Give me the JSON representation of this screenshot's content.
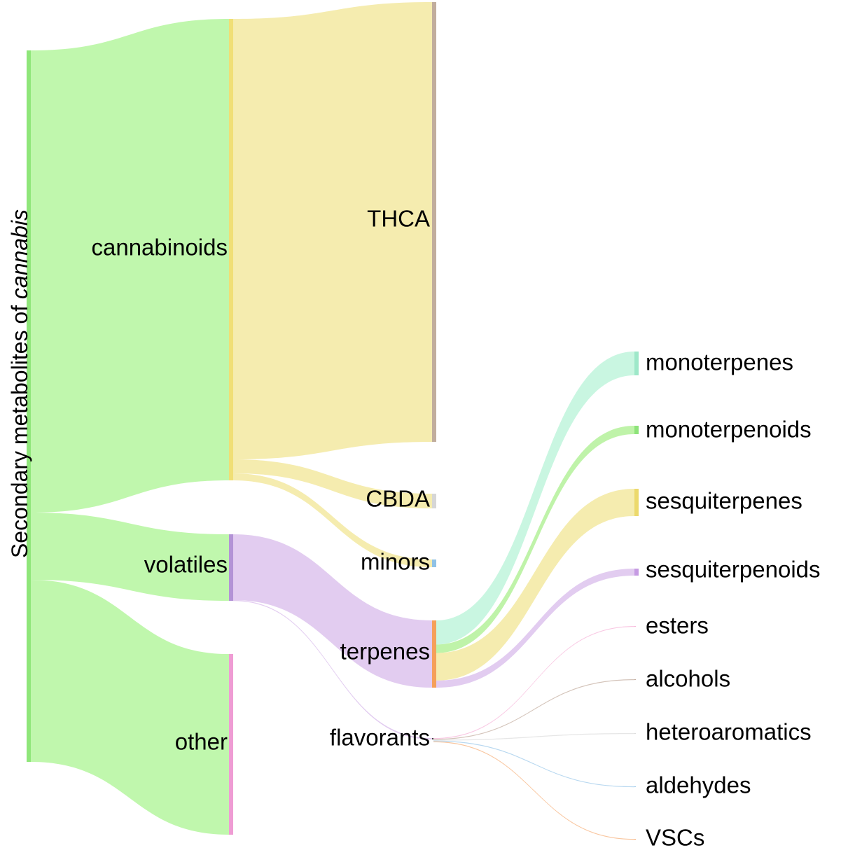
{
  "diagram": {
    "type": "sankey",
    "title_prefix": "Secondary metabolites of ",
    "title_italic": "cannabis",
    "nodes": [
      {
        "id": "root",
        "label": "",
        "color": "#8fe67a"
      },
      {
        "id": "cannabinoids",
        "label": "cannabinoids",
        "color": "#f0df76"
      },
      {
        "id": "volatiles",
        "label": "volatiles",
        "color": "#b393d6"
      },
      {
        "id": "other",
        "label": "other",
        "color": "#ef9cd4"
      },
      {
        "id": "THCA",
        "label": "THCA",
        "color": "#c1ad9d"
      },
      {
        "id": "CBDA",
        "label": "CBDA",
        "color": "#d6d6d6"
      },
      {
        "id": "minors",
        "label": "minors",
        "color": "#8fc1e6"
      },
      {
        "id": "terpenes",
        "label": "terpenes",
        "color": "#f5a05a"
      },
      {
        "id": "flavorants",
        "label": "flavorants",
        "color": "#444444"
      },
      {
        "id": "monoterpenes",
        "label": "monoterpenes",
        "color": "#9ee8c9"
      },
      {
        "id": "monoterpenoids",
        "label": "monoterpenoids",
        "color": "#8ee37a"
      },
      {
        "id": "sesquiterpenes",
        "label": "sesquiterpenes",
        "color": "#ecd96c"
      },
      {
        "id": "sesquiterpenoids",
        "label": "sesquiterpenoids",
        "color": "#c69be3"
      },
      {
        "id": "esters",
        "label": "esters",
        "color": "#f6b3d8"
      },
      {
        "id": "alcohols",
        "label": "alcohols",
        "color": "#c3ad9f"
      },
      {
        "id": "heteroaromatics",
        "label": "heteroaromatics",
        "color": "#dcdcdc"
      },
      {
        "id": "aldehydes",
        "label": "aldehydes",
        "color": "#9cc9ea"
      },
      {
        "id": "VSCs",
        "label": "VSCs",
        "color": "#f6b07a"
      }
    ],
    "links": [
      {
        "source": "root",
        "target": "cannabinoids",
        "value": 66,
        "color": "#a8f48e"
      },
      {
        "source": "root",
        "target": "volatiles",
        "value": 9.6,
        "color": "#a8f48e"
      },
      {
        "source": "root",
        "target": "other",
        "value": 26,
        "color": "#a8f48e"
      },
      {
        "source": "cannabinoids",
        "target": "THCA",
        "value": 63,
        "color": "#f1e590"
      },
      {
        "source": "cannabinoids",
        "target": "CBDA",
        "value": 2,
        "color": "#f1e590"
      },
      {
        "source": "cannabinoids",
        "target": "minors",
        "value": 1,
        "color": "#f1e590"
      },
      {
        "source": "volatiles",
        "target": "terpenes",
        "value": 9.5,
        "color": "#d7b8ea"
      },
      {
        "source": "volatiles",
        "target": "flavorants",
        "value": 0.1,
        "color": "#d7b8ea"
      },
      {
        "source": "terpenes",
        "target": "monoterpenes",
        "value": 3.4,
        "color": "#b4f2d6"
      },
      {
        "source": "terpenes",
        "target": "monoterpenoids",
        "value": 1.2,
        "color": "#a6ee88"
      },
      {
        "source": "terpenes",
        "target": "sesquiterpenes",
        "value": 3.9,
        "color": "#f1e590"
      },
      {
        "source": "terpenes",
        "target": "sesquiterpenoids",
        "value": 1.0,
        "color": "#d7b8ea"
      },
      {
        "source": "flavorants",
        "target": "esters",
        "value": 0.02,
        "color": "#f6b3d8"
      },
      {
        "source": "flavorants",
        "target": "alcohols",
        "value": 0.02,
        "color": "#c3ad9f"
      },
      {
        "source": "flavorants",
        "target": "heteroaromatics",
        "value": 0.02,
        "color": "#dcdcdc"
      },
      {
        "source": "flavorants",
        "target": "aldehydes",
        "value": 0.02,
        "color": "#9cc9ea"
      },
      {
        "source": "flavorants",
        "target": "VSCs",
        "value": 0.02,
        "color": "#f6b07a"
      }
    ]
  }
}
